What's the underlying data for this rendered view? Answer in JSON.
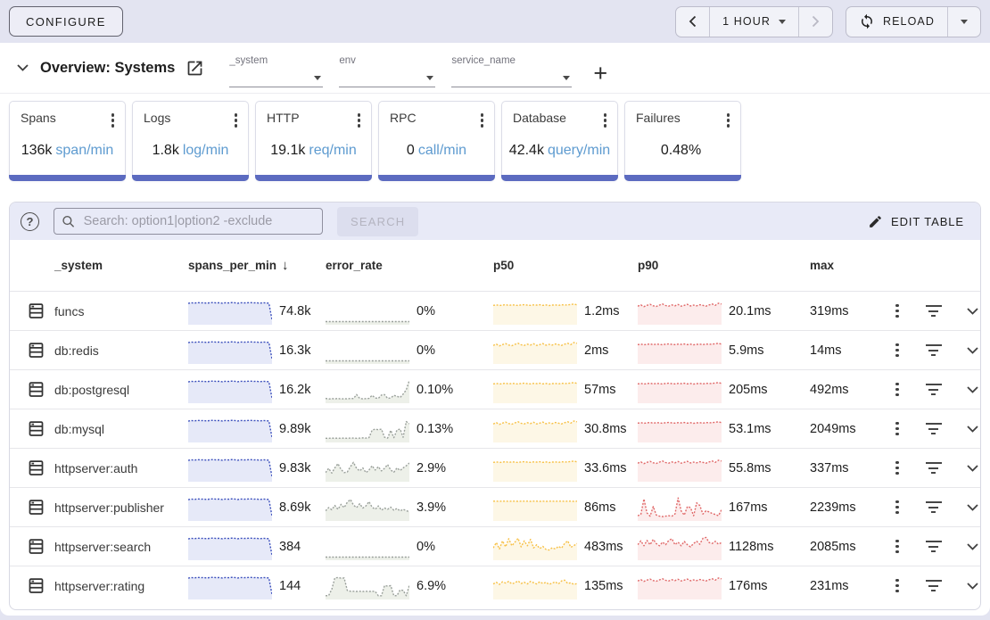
{
  "toolbar": {
    "configure": "CONFIGURE",
    "time_range": "1 HOUR",
    "reload": "RELOAD"
  },
  "overview": {
    "title": "Overview: Systems",
    "filters": [
      "_system",
      "env",
      "service_name"
    ]
  },
  "cards": [
    {
      "title": "Spans",
      "value": "136k",
      "unit": "span/min"
    },
    {
      "title": "Logs",
      "value": "1.8k",
      "unit": "log/min"
    },
    {
      "title": "HTTP",
      "value": "19.1k",
      "unit": "req/min"
    },
    {
      "title": "RPC",
      "value": "0",
      "unit": "call/min"
    },
    {
      "title": "Database",
      "value": "42.4k",
      "unit": "query/min"
    },
    {
      "title": "Failures",
      "value": "0.48%",
      "unit": ""
    }
  ],
  "search": {
    "placeholder": "Search: option1|option2 -exclude",
    "search_button": "SEARCH",
    "edit_table": "EDIT TABLE"
  },
  "table": {
    "headers": {
      "system": "_system",
      "spans": "spans_per_min",
      "error": "error_rate",
      "p50": "p50",
      "p90": "p90",
      "max": "max"
    },
    "sort": {
      "column": "spans_per_min",
      "direction": "desc"
    },
    "rows": [
      {
        "name": "funcs",
        "spans_per_min": "74.8k",
        "error_rate": "0%",
        "p50": "1.2ms",
        "p90": "20.1ms",
        "max": "319ms",
        "sparks": {
          "spans": "plateau_drop",
          "error": "flat_zero",
          "p50": "noisy_top_soft",
          "p90": "noisy_top"
        }
      },
      {
        "name": "db:redis",
        "spans_per_min": "16.3k",
        "error_rate": "0%",
        "p50": "2ms",
        "p90": "5.9ms",
        "max": "14ms",
        "sparks": {
          "spans": "plateau_drop",
          "error": "flat_zero",
          "p50": "noisy_top",
          "p90": "noisy_top_soft"
        }
      },
      {
        "name": "db:postgresql",
        "spans_per_min": "16.2k",
        "error_rate": "0.10%",
        "p50": "57ms",
        "p90": "205ms",
        "max": "492ms",
        "sparks": {
          "spans": "plateau_drop",
          "error": "low_spiky_rise",
          "p50": "noisy_top_soft",
          "p90": "noisy_top_soft"
        }
      },
      {
        "name": "db:mysql",
        "spans_per_min": "9.89k",
        "error_rate": "0.13%",
        "p50": "30.8ms",
        "p90": "53.1ms",
        "max": "2049ms",
        "sparks": {
          "spans": "plateau_drop",
          "error": "low_humps",
          "p50": "noisy_top",
          "p90": "noisy_top_soft"
        }
      },
      {
        "name": "httpserver:auth",
        "spans_per_min": "9.83k",
        "error_rate": "2.9%",
        "p50": "33.6ms",
        "p90": "55.8ms",
        "max": "337ms",
        "sparks": {
          "spans": "plateau_drop",
          "error": "zigzag_mid",
          "p50": "noisy_top_soft",
          "p90": "noisy_top"
        }
      },
      {
        "name": "httpserver:publisher",
        "spans_per_min": "8.69k",
        "error_rate": "3.9%",
        "p50": "86ms",
        "p90": "167ms",
        "max": "2239ms",
        "sparks": {
          "spans": "plateau_drop",
          "error": "zigzag_mid2",
          "p50": "flat_top",
          "p90": "spiky_base"
        }
      },
      {
        "name": "httpserver:search",
        "spans_per_min": "384",
        "error_rate": "0%",
        "p50": "483ms",
        "p90": "1128ms",
        "max": "2085ms",
        "sparks": {
          "spans": "plateau_drop",
          "error": "flat_zero",
          "p50": "big_zigzag",
          "p90": "noisy_mid_zig"
        }
      },
      {
        "name": "httpserver:rating",
        "spans_per_min": "144",
        "error_rate": "6.9%",
        "p50": "135ms",
        "p90": "176ms",
        "max": "231ms",
        "sparks": {
          "spans": "plateau_drop",
          "error": "plateau_pulses",
          "p50": "noisy_mid",
          "p90": "noisy_top"
        }
      }
    ]
  },
  "sparkline_presets": {
    "plateau_drop": [
      0.87,
      0.9,
      0.88,
      0.91,
      0.89,
      0.9,
      0.88,
      0.9,
      0.91,
      0.89,
      0.9,
      0.88,
      0.9,
      0.89,
      0.91,
      0.9,
      0.88,
      0.9,
      0.89,
      0.9,
      0.91,
      0.89,
      0.9,
      0.88,
      0.9,
      0.89,
      0.88,
      0.1
    ],
    "flat_zero": [
      0.02,
      0.02,
      0.02,
      0.02,
      0.02,
      0.02,
      0.02,
      0.02,
      0.02,
      0.02,
      0.02,
      0.02,
      0.02,
      0.02,
      0.02,
      0.02,
      0.02,
      0.02,
      0.02,
      0.02,
      0.02,
      0.02,
      0.02,
      0.02,
      0.02,
      0.02,
      0.02,
      0.02
    ],
    "low_spiky_rise": [
      0.1,
      0.07,
      0.09,
      0.08,
      0.1,
      0.07,
      0.09,
      0.08,
      0.1,
      0.09,
      0.28,
      0.1,
      0.08,
      0.09,
      0.1,
      0.24,
      0.12,
      0.1,
      0.26,
      0.28,
      0.1,
      0.12,
      0.24,
      0.2,
      0.14,
      0.3,
      0.5,
      0.95
    ],
    "low_humps": [
      0.07,
      0.07,
      0.08,
      0.07,
      0.08,
      0.07,
      0.08,
      0.07,
      0.08,
      0.08,
      0.07,
      0.08,
      0.09,
      0.08,
      0.1,
      0.45,
      0.5,
      0.47,
      0.5,
      0.12,
      0.08,
      0.44,
      0.1,
      0.46,
      0.5,
      0.12,
      0.85,
      0.75
    ],
    "zigzag_mid": [
      0.3,
      0.5,
      0.28,
      0.52,
      0.72,
      0.45,
      0.3,
      0.33,
      0.58,
      0.78,
      0.5,
      0.38,
      0.52,
      0.3,
      0.42,
      0.62,
      0.42,
      0.58,
      0.38,
      0.5,
      0.68,
      0.42,
      0.32,
      0.52,
      0.4,
      0.52,
      0.62,
      0.75
    ],
    "zigzag_mid2": [
      0.35,
      0.5,
      0.4,
      0.6,
      0.42,
      0.65,
      0.5,
      0.75,
      0.88,
      0.62,
      0.5,
      0.68,
      0.48,
      0.58,
      0.78,
      0.52,
      0.42,
      0.58,
      0.38,
      0.48,
      0.42,
      0.52,
      0.38,
      0.46,
      0.34,
      0.42,
      0.36,
      0.3
    ],
    "plateau_pulses": [
      0.05,
      0.06,
      0.35,
      0.88,
      0.9,
      0.87,
      0.88,
      0.3,
      0.26,
      0.26,
      0.25,
      0.26,
      0.25,
      0.26,
      0.25,
      0.26,
      0.25,
      0.05,
      0.05,
      0.52,
      0.5,
      0.52,
      0.05,
      0.06,
      0.32,
      0.3,
      0.05,
      0.55
    ],
    "noisy_top": [
      0.74,
      0.8,
      0.72,
      0.78,
      0.83,
      0.76,
      0.73,
      0.79,
      0.84,
      0.77,
      0.74,
      0.8,
      0.76,
      0.82,
      0.74,
      0.78,
      0.83,
      0.75,
      0.79,
      0.76,
      0.81,
      0.78,
      0.74,
      0.8,
      0.84,
      0.78,
      0.88,
      0.84
    ],
    "noisy_top_soft": [
      0.78,
      0.8,
      0.77,
      0.79,
      0.81,
      0.78,
      0.8,
      0.79,
      0.77,
      0.8,
      0.81,
      0.79,
      0.78,
      0.8,
      0.79,
      0.81,
      0.78,
      0.8,
      0.77,
      0.79,
      0.8,
      0.78,
      0.81,
      0.79,
      0.8,
      0.82,
      0.84,
      0.8
    ],
    "flat_top": [
      0.8,
      0.8,
      0.79,
      0.8,
      0.8,
      0.79,
      0.8,
      0.8,
      0.79,
      0.8,
      0.8,
      0.8,
      0.79,
      0.8,
      0.8,
      0.79,
      0.8,
      0.79,
      0.8,
      0.8,
      0.79,
      0.8,
      0.8,
      0.79,
      0.8,
      0.8,
      0.79,
      0.8
    ],
    "big_zigzag": [
      0.45,
      0.7,
      0.4,
      0.78,
      0.5,
      0.88,
      0.55,
      0.72,
      0.9,
      0.5,
      0.78,
      0.55,
      0.85,
      0.45,
      0.6,
      0.42,
      0.52,
      0.38,
      0.35,
      0.46,
      0.4,
      0.52,
      0.44,
      0.66,
      0.78,
      0.48,
      0.56,
      0.66
    ],
    "spiky_base": [
      0.12,
      0.18,
      0.9,
      0.25,
      0.1,
      0.55,
      0.15,
      0.1,
      0.08,
      0.1,
      0.12,
      0.1,
      0.2,
      0.95,
      0.35,
      0.15,
      0.55,
      0.5,
      0.12,
      0.72,
      0.6,
      0.2,
      0.35,
      0.3,
      0.22,
      0.18,
      0.12,
      0.4
    ],
    "noisy_mid_zig": [
      0.6,
      0.78,
      0.55,
      0.8,
      0.6,
      0.85,
      0.65,
      0.55,
      0.72,
      0.6,
      0.8,
      0.88,
      0.6,
      0.72,
      0.55,
      0.75,
      0.6,
      0.5,
      0.66,
      0.76,
      0.62,
      0.9,
      0.94,
      0.7,
      0.66,
      0.76,
      0.62,
      0.7
    ],
    "noisy_mid": [
      0.6,
      0.68,
      0.58,
      0.7,
      0.64,
      0.72,
      0.6,
      0.66,
      0.74,
      0.62,
      0.68,
      0.6,
      0.72,
      0.66,
      0.6,
      0.7,
      0.62,
      0.68,
      0.58,
      0.64,
      0.7,
      0.6,
      0.74,
      0.78,
      0.62,
      0.66,
      0.58,
      0.62
    ]
  },
  "colors": {
    "accent_indigo": "#5c6bc0",
    "spark_spans_line": "#3d51bd",
    "spark_spans_fill": "#e6e9f8",
    "spark_error_line": "#9aa09b",
    "spark_error_fill": "#edf0e9",
    "spark_p50_line": "#f7c045",
    "spark_p50_fill": "#fdf7e6",
    "spark_p90_line": "#e06868",
    "spark_p90_fill": "#fcecec",
    "unit_text": "#5e9bd0"
  }
}
